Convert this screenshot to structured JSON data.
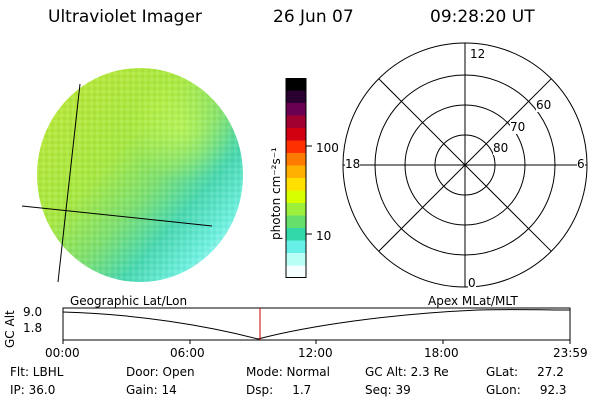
{
  "header": {
    "title": "Ultraviolet Imager",
    "date": "26 Jun 07",
    "time": "09:28:20 UT"
  },
  "colorbar": {
    "unit_label": "photon cm⁻²s⁻¹",
    "ticks": [
      "100",
      "10"
    ],
    "colors": [
      "#000000",
      "#2a0030",
      "#6a0050",
      "#a00030",
      "#d00010",
      "#ff3000",
      "#ff7a00",
      "#ffb000",
      "#ffe000",
      "#d8ff00",
      "#9cf03c",
      "#66e06a",
      "#33d8a8",
      "#66f0e8",
      "#b8fff6",
      "#f4ffff"
    ]
  },
  "polar": {
    "labels": {
      "top": "12",
      "left": "18",
      "right": "6",
      "bottom": "0"
    },
    "rings": [
      "60",
      "70",
      "80"
    ]
  },
  "timeline": {
    "left_title": "Geographic Lat/Lon",
    "right_title": "Apex MLat/MLT",
    "axis_label": "GC Alt",
    "y_ticks": [
      "9.0",
      "1.8"
    ],
    "x_ticks": [
      "00:00",
      "06:00",
      "12:00",
      "18:00",
      "23:59"
    ],
    "marker_color": "#cc0000"
  },
  "info": {
    "flt": "Flt: LBHL",
    "ip": "IP: 36.0",
    "door": "Door: Open",
    "gain": "Gain: 14",
    "mode": "Mode: Normal",
    "dsp": "Dsp:     1.7",
    "gc_alt": "GC Alt: 2.3 Re",
    "seq": "Seq: 39",
    "glat": "GLat:     27.2",
    "glon": "GLon:     92.3"
  }
}
